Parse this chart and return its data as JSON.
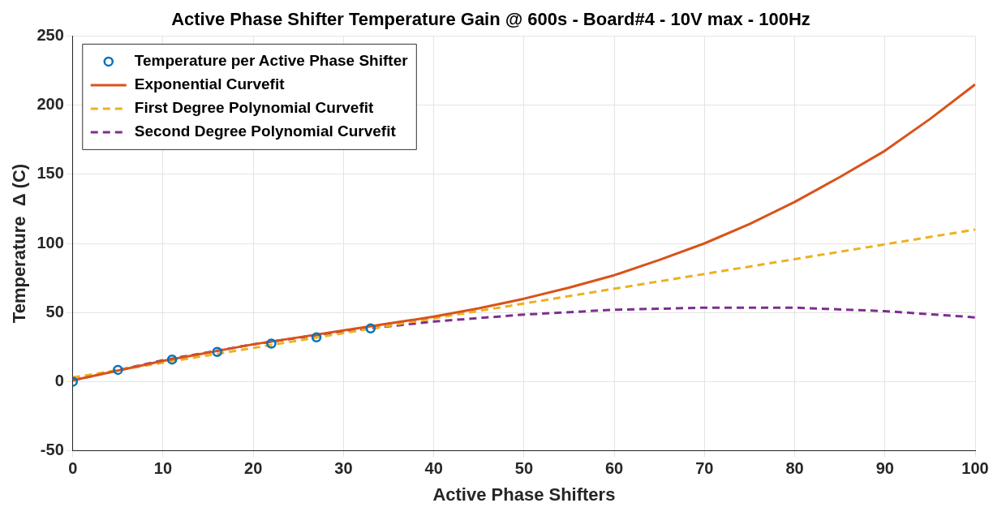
{
  "chart_data": {
    "type": "line",
    "title": "Active Phase Shifter Temperature Gain @ 600s - Board#4 - 10V max - 100Hz",
    "xlabel": "Active Phase Shifters",
    "ylabel": "Temperature  Δ (C)",
    "xlim": [
      0,
      100
    ],
    "xticks": [
      0,
      10,
      20,
      30,
      40,
      50,
      60,
      70,
      80,
      90,
      100
    ],
    "ylim": [
      -50,
      250
    ],
    "yticks": [
      -50,
      0,
      50,
      100,
      150,
      200,
      250
    ],
    "grid": true,
    "legend": "top left",
    "series": [
      {
        "name": "Temperature per Active Phase Shifter",
        "type": "scatter",
        "marker": "circle",
        "color": "#0072bd",
        "x": [
          0,
          5,
          11,
          16,
          22,
          27,
          33
        ],
        "values": [
          0,
          8.5,
          16,
          21.5,
          27.5,
          32,
          38.5
        ]
      },
      {
        "name": "Exponential Curvefit",
        "line_style": "solid",
        "color": "#d95319",
        "x": [
          0,
          5,
          10,
          15,
          20,
          25,
          30,
          35,
          40,
          45,
          50,
          55,
          60,
          65,
          70,
          75,
          80,
          85,
          90,
          95,
          100
        ],
        "values": [
          1,
          8,
          15,
          21,
          27,
          32,
          37,
          42,
          47,
          53,
          60,
          68,
          77,
          88,
          100,
          114,
          130,
          148,
          167,
          190,
          215
        ]
      },
      {
        "name": "First Degree Polynomial Curvefit",
        "line_style": "dashed",
        "color": "#edb120",
        "x": [
          0,
          100
        ],
        "values": [
          3,
          110
        ]
      },
      {
        "name": "Second Degree Polynomial Curvefit",
        "line_style": "dashed",
        "color": "#7e2f8e",
        "x": [
          0,
          10,
          20,
          30,
          40,
          50,
          60,
          70,
          80,
          90,
          100
        ],
        "values": [
          1,
          15.5,
          27,
          36.5,
          43.5,
          48.5,
          52,
          53.5,
          53.5,
          51,
          46.5
        ]
      }
    ]
  }
}
